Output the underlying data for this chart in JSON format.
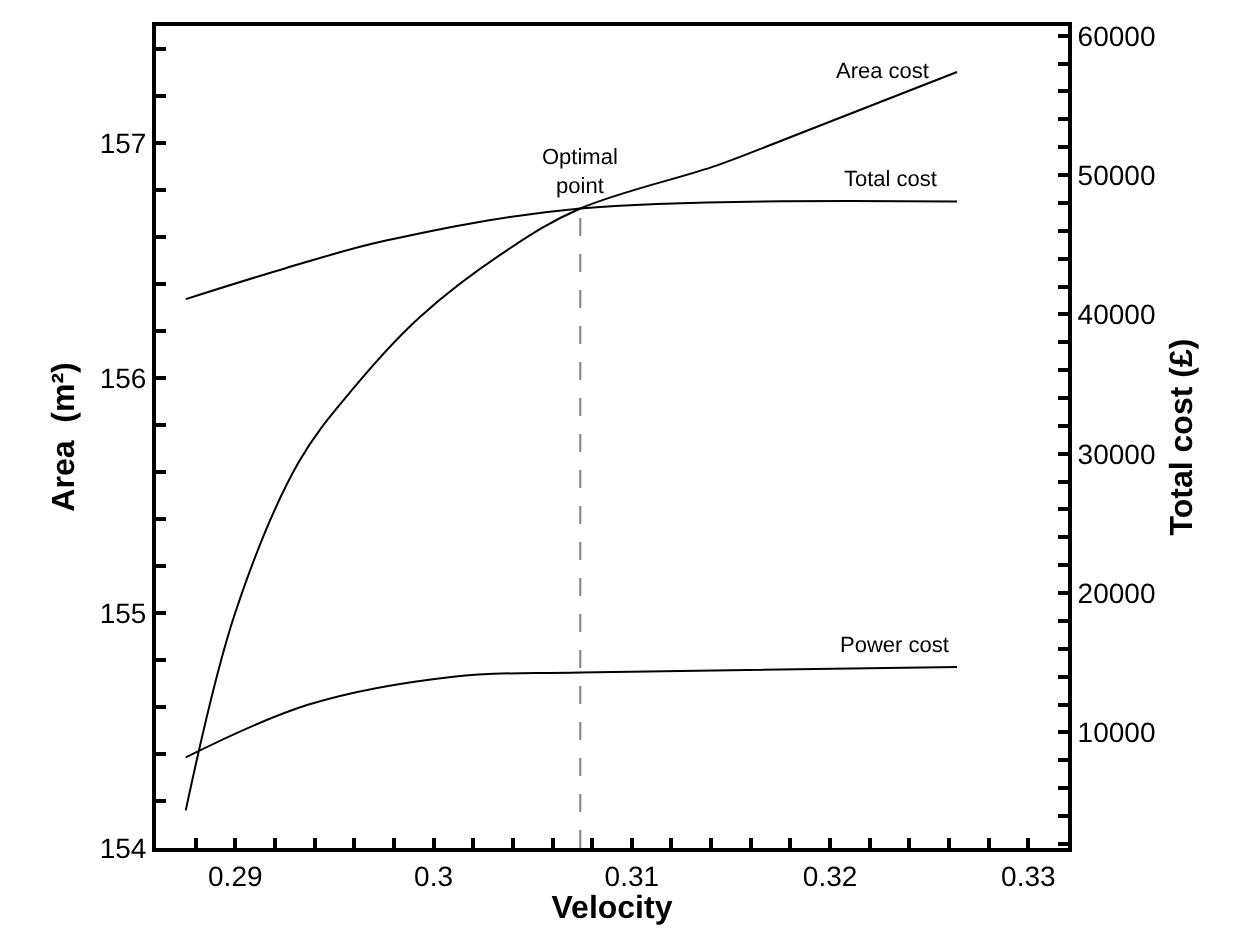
{
  "chart_data": {
    "type": "line",
    "xlabel": "Velocity",
    "ylabel": "Area  (m²)",
    "y2label": "Total cost (£)",
    "xlim": [
      0.286,
      0.332
    ],
    "xticks": [
      {
        "value": 0.288,
        "label": null
      },
      0.29,
      {
        "value": 0.292,
        "label": null
      },
      {
        "value": 0.294,
        "label": null
      },
      {
        "value": 0.296,
        "label": null
      },
      {
        "value": 0.298,
        "label": null
      },
      0.3,
      {
        "value": 0.302,
        "label": null
      },
      {
        "value": 0.304,
        "label": null
      },
      {
        "value": 0.306,
        "label": null
      },
      {
        "value": 0.308,
        "label": null
      },
      0.31,
      {
        "value": 0.312,
        "label": null
      },
      {
        "value": 0.314,
        "label": null
      },
      {
        "value": 0.316,
        "label": null
      },
      {
        "value": 0.318,
        "label": null
      },
      0.32,
      {
        "value": 0.322,
        "label": null
      },
      {
        "value": 0.324,
        "label": null
      },
      {
        "value": 0.326,
        "label": null
      },
      {
        "value": 0.328,
        "label": null
      },
      0.33
    ],
    "ylim": [
      154,
      157.5
    ],
    "yticks": [
      154,
      {
        "value": 154.2,
        "label": null
      },
      {
        "value": 154.4,
        "label": null
      },
      {
        "value": 154.6,
        "label": null
      },
      {
        "value": 154.8,
        "label": null
      },
      155,
      {
        "value": 155.2,
        "label": null
      },
      {
        "value": 155.4,
        "label": null
      },
      {
        "value": 155.6,
        "label": null
      },
      {
        "value": 155.8,
        "label": null
      },
      156,
      {
        "value": 156.2,
        "label": null
      },
      {
        "value": 156.4,
        "label": null
      },
      {
        "value": 156.6,
        "label": null
      },
      {
        "value": 156.8,
        "label": null
      },
      157,
      {
        "value": 157.2,
        "label": null
      },
      {
        "value": 157.4,
        "label": null
      }
    ],
    "y2lim": [
      1700,
      60700
    ],
    "y2ticks": [
      {
        "value": 2000,
        "label": null
      },
      {
        "value": 4000,
        "label": null
      },
      {
        "value": 6000,
        "label": null
      },
      {
        "value": 8000,
        "label": null
      },
      10000,
      {
        "value": 12000,
        "label": null
      },
      {
        "value": 14000,
        "label": null
      },
      {
        "value": 16000,
        "label": null
      },
      {
        "value": 18000,
        "label": null
      },
      20000,
      {
        "value": 22000,
        "label": null
      },
      {
        "value": 24000,
        "label": null
      },
      {
        "value": 26000,
        "label": null
      },
      {
        "value": 28000,
        "label": null
      },
      30000,
      {
        "value": 32000,
        "label": null
      },
      {
        "value": 34000,
        "label": null
      },
      {
        "value": 36000,
        "label": null
      },
      {
        "value": 38000,
        "label": null
      },
      40000,
      {
        "value": 42000,
        "label": null
      },
      {
        "value": 44000,
        "label": null
      },
      {
        "value": 46000,
        "label": null
      },
      {
        "value": 48000,
        "label": null
      },
      50000,
      {
        "value": 52000,
        "label": null
      },
      {
        "value": 54000,
        "label": null
      },
      {
        "value": 56000,
        "label": null
      },
      {
        "value": 58000,
        "label": null
      },
      60000
    ],
    "series": [
      {
        "color": "#000000",
        "axis": "y2",
        "x": [
          0.2875,
          0.2925,
          0.2976,
          0.3074,
          0.3264
        ],
        "values": [
          41100,
          43300,
          45300,
          47600,
          48100
        ]
      },
      {
        "color": "#000000",
        "axis": "y2",
        "x": [
          0.2875,
          0.29,
          0.2932,
          0.2959,
          0.2993,
          0.3037,
          0.3074,
          0.3143,
          0.3176,
          0.3264
        ],
        "values": [
          4400,
          18600,
          29400,
          34600,
          39800,
          44600,
          47600,
          50700,
          52500,
          57400
        ]
      },
      {
        "color": "#000000",
        "axis": "y2",
        "x": [
          0.2875,
          0.2937,
          0.301,
          0.3074,
          0.3264
        ],
        "values": [
          8200,
          12000,
          14000,
          14300,
          14700
        ]
      },
      {
        "color": "#808080",
        "axis": "y2",
        "line_style": "dashed",
        "x": [
          0.3074,
          0.3074
        ],
        "values": [
          1700,
          47600
        ]
      }
    ],
    "annotations": [
      {
        "text": "Area cost",
        "x": 0.3226,
        "y": 157.18
      },
      {
        "text": "Total cost",
        "x": 0.323,
        "y": 156.75
      },
      {
        "text": "Power cost",
        "x": 0.3232,
        "y": 154.77
      },
      {
        "text": "Optimal\npoint",
        "x": 0.3074,
        "y": 156.72
      }
    ],
    "marker": "none",
    "line_style": "solid"
  }
}
